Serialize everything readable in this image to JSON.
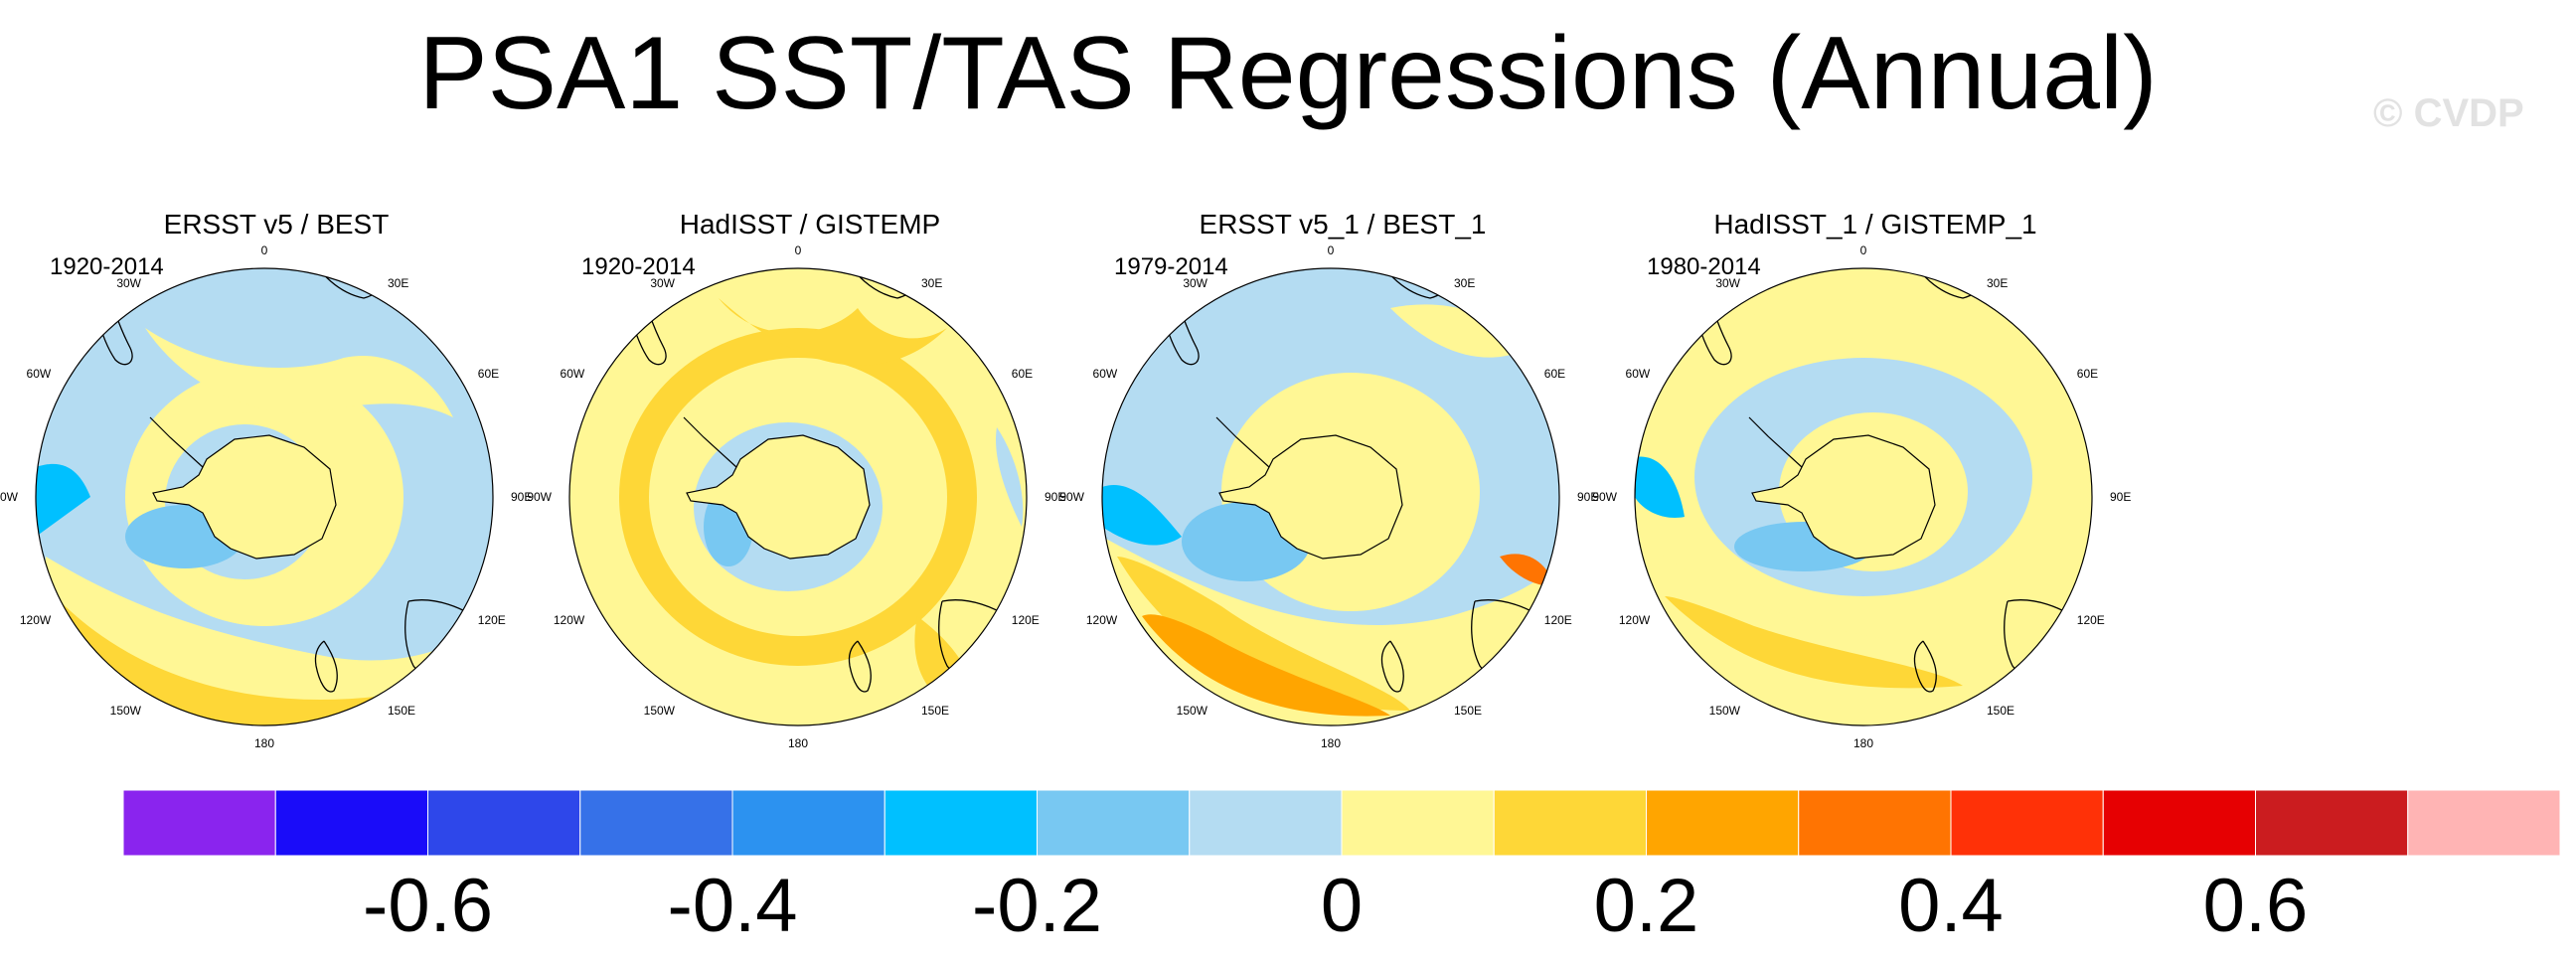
{
  "title": "PSA1 SST/TAS Regressions (Annual)",
  "watermark": "© CVDP",
  "panels": [
    {
      "title": "ERSST v5 / BEST",
      "years": "1920-2014"
    },
    {
      "title": "HadISST / GISTEMP",
      "years": "1920-2014"
    },
    {
      "title": "ERSST v5_1 / BEST_1",
      "years": "1979-2014"
    },
    {
      "title": "HadISST_1 / GISTEMP_1",
      "years": "1980-2014"
    }
  ],
  "longitude_labels": [
    "0",
    "30E",
    "60E",
    "90E",
    "120E",
    "150E",
    "180",
    "150W",
    "120W",
    "90W",
    "60W",
    "30W"
  ],
  "colorbar": {
    "colors": [
      "#8a24ee",
      "#1a0cf9",
      "#2e47ea",
      "#3671e8",
      "#2c92f0",
      "#00c0ff",
      "#78c8f2",
      "#b4dcf2",
      "#fff795",
      "#fed737",
      "#ffa500",
      "#ff7402",
      "#ff3107",
      "#e60002",
      "#cb1c1f",
      "#ffb4b4"
    ],
    "tick_labels": [
      "-0.6",
      "-0.4",
      "-0.2",
      "0",
      "0.2",
      "0.4",
      "0.6"
    ]
  }
}
